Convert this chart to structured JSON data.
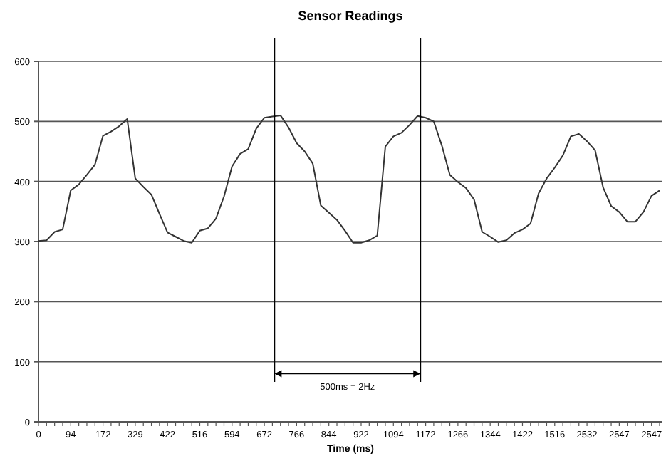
{
  "chart_data": {
    "type": "line",
    "title": "Sensor Readings",
    "xlabel": "Time (ms)",
    "categories": [
      "0",
      null,
      null,
      null,
      "94",
      null,
      null,
      null,
      "172",
      null,
      null,
      null,
      "329",
      null,
      null,
      null,
      "422",
      null,
      null,
      null,
      "516",
      null,
      null,
      null,
      "594",
      null,
      null,
      null,
      "672",
      null,
      null,
      null,
      "766",
      null,
      null,
      null,
      "844",
      null,
      null,
      null,
      "922",
      null,
      null,
      null,
      "1094",
      null,
      null,
      null,
      "1172",
      null,
      null,
      null,
      "1266",
      null,
      null,
      null,
      "1344",
      null,
      null,
      null,
      "1422",
      null,
      null,
      null,
      "1516",
      null,
      null,
      null,
      "2532",
      null,
      null,
      null,
      "2547",
      null,
      null,
      null,
      "2547",
      null
    ],
    "series": [
      {
        "color": "#333333",
        "values": [
          301,
          302,
          316,
          320,
          385,
          395,
          411,
          428,
          476,
          483,
          492,
          504,
          405,
          391,
          378,
          346,
          315,
          308,
          301,
          298,
          318,
          322,
          338,
          375,
          425,
          446,
          454,
          488,
          506,
          508,
          510,
          490,
          464,
          450,
          430,
          360,
          348,
          336,
          318,
          298,
          298,
          302,
          310,
          458,
          475,
          481,
          494,
          509,
          506,
          500,
          460,
          411,
          399,
          389,
          370,
          316,
          308,
          299,
          302,
          314,
          320,
          330,
          380,
          405,
          423,
          443,
          475,
          479,
          467,
          452,
          390,
          359,
          349,
          333,
          333,
          349,
          376,
          385
        ]
      }
    ],
    "ylim": [
      0,
      600
    ],
    "yticks": [
      0,
      100,
      200,
      300,
      400,
      500,
      600
    ],
    "grid": "y",
    "marker": "none",
    "line_style": "solid",
    "annotations": [
      "500ms = 2Hz"
    ]
  }
}
